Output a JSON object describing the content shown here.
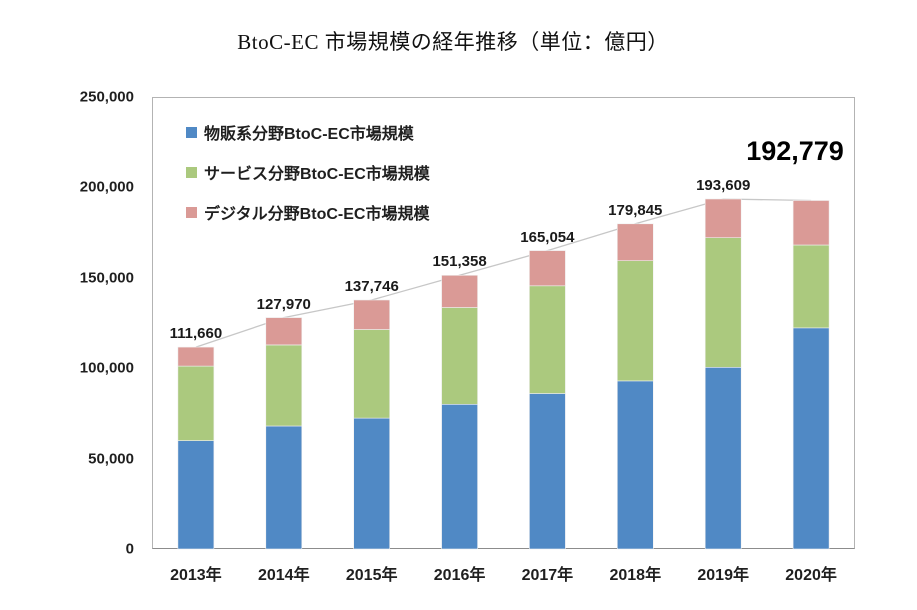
{
  "title": "BtoC-EC 市場規模の経年推移（単位：億円）",
  "legend": {
    "items": [
      {
        "label": "物販系分野BtoC-EC市場規模",
        "color": "#5089c5"
      },
      {
        "label": "サービス分野BtoC-EC市場規模",
        "color": "#abc97e"
      },
      {
        "label": "デジタル分野BtoC-EC市場規模",
        "color": "#da9a96"
      }
    ]
  },
  "chart_data": {
    "type": "bar",
    "stacked": true,
    "title": "BtoC-EC 市場規模の経年推移（単位：億円）",
    "categories": [
      "2013年",
      "2014年",
      "2015年",
      "2016年",
      "2017年",
      "2018年",
      "2019年",
      "2020年"
    ],
    "series": [
      {
        "name": "物販系分野BtoC-EC市場規模",
        "color": "#5089c5",
        "values": [
          59931,
          68043,
          72398,
          80043,
          86008,
          92992,
          100515,
          122333
        ]
      },
      {
        "name": "サービス分野BtoC-EC市場規模",
        "color": "#abc97e",
        "values": [
          41210,
          44816,
          49014,
          53532,
          59568,
          66471,
          71672,
          45832
        ]
      },
      {
        "name": "デジタル分野BtoC-EC市場規模",
        "color": "#da9a96",
        "values": [
          10519,
          15111,
          16334,
          17783,
          19478,
          20382,
          21422,
          24614
        ]
      }
    ],
    "totals": [
      111660,
      127970,
      137746,
      151358,
      165054,
      179845,
      193609,
      192779
    ],
    "total_labels": [
      "111,660",
      "127,970",
      "137,746",
      "151,358",
      "165,054",
      "179,845",
      "193,609",
      "192,779"
    ],
    "highlight_total_index": 7,
    "xlabel": "",
    "ylabel": "",
    "ylim": [
      0,
      250000
    ],
    "ytick_step": 50000,
    "ytick_labels": [
      "0",
      "50,000",
      "100,000",
      "150,000",
      "200,000",
      "250,000"
    ],
    "grid": false,
    "legend_position": "top-left-inside",
    "connector_line": true,
    "connector_line_color": "#c7c7c7"
  }
}
